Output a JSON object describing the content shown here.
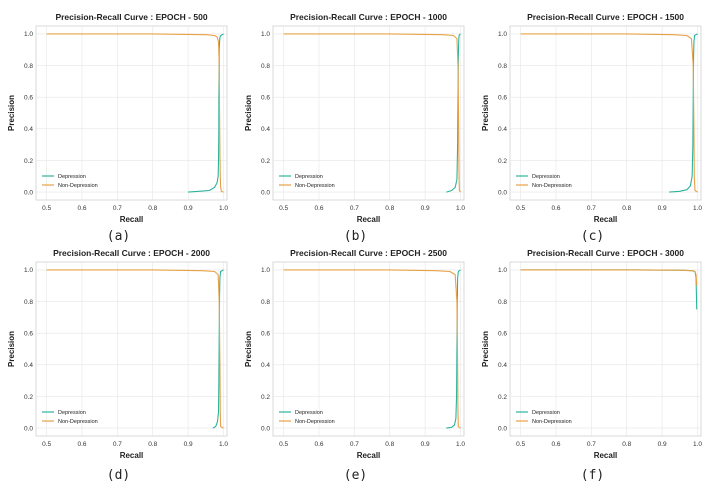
{
  "chart_data": [
    {
      "panel": "(a)",
      "type": "line",
      "title": "Precision-Recall Curve : EPOCH - 500",
      "xlabel": "Recall",
      "ylabel": "Precision",
      "xlim": [
        0.47,
        1.01
      ],
      "ylim": [
        -0.05,
        1.05
      ],
      "xticks": [
        "0.5",
        "0.6",
        "0.7",
        "0.8",
        "0.9",
        "1.0"
      ],
      "yticks": [
        "0.0",
        "0.2",
        "0.4",
        "0.6",
        "0.8",
        "1.0"
      ],
      "grid": true,
      "legend_position": "lower-left",
      "series": [
        {
          "name": "Depression",
          "color": "#2bb39b",
          "x": [
            0.9,
            0.93,
            0.96,
            0.975,
            0.982,
            0.985,
            0.986,
            0.987,
            0.987,
            0.988,
            0.988,
            0.989,
            0.99,
            0.993,
            1.0
          ],
          "y": [
            0.0,
            0.005,
            0.01,
            0.03,
            0.06,
            0.1,
            0.2,
            0.4,
            0.6,
            0.8,
            0.9,
            0.95,
            0.98,
            0.99,
            1.0
          ]
        },
        {
          "name": "Non-Depression",
          "color": "#e8a045",
          "x": [
            0.5,
            0.8,
            0.95,
            0.975,
            0.982,
            0.986,
            0.988,
            0.989,
            0.99,
            0.991,
            0.992,
            0.994,
            1.0
          ],
          "y": [
            1.0,
            1.0,
            0.995,
            0.99,
            0.98,
            0.95,
            0.8,
            0.5,
            0.25,
            0.1,
            0.03,
            0.005,
            0.0
          ]
        }
      ]
    },
    {
      "panel": "(b)",
      "type": "line",
      "title": "Precision-Recall Curve : EPOCH - 1000",
      "xlabel": "Recall",
      "ylabel": "Precision",
      "xlim": [
        0.47,
        1.01
      ],
      "ylim": [
        -0.05,
        1.05
      ],
      "xticks": [
        "0.5",
        "0.6",
        "0.7",
        "0.8",
        "0.9",
        "1.0"
      ],
      "yticks": [
        "0.0",
        "0.2",
        "0.4",
        "0.6",
        "0.8",
        "1.0"
      ],
      "grid": true,
      "legend_position": "lower-left",
      "series": [
        {
          "name": "Depression",
          "color": "#2bb39b",
          "x": [
            0.96,
            0.975,
            0.985,
            0.99,
            0.992,
            0.993,
            0.994,
            0.995,
            0.996,
            1.0
          ],
          "y": [
            0.0,
            0.01,
            0.03,
            0.08,
            0.3,
            0.6,
            0.85,
            0.95,
            0.99,
            1.0
          ]
        },
        {
          "name": "Non-Depression",
          "color": "#e8a045",
          "x": [
            0.5,
            0.8,
            0.95,
            0.98,
            0.99,
            0.993,
            0.995,
            0.996,
            0.997,
            1.0
          ],
          "y": [
            1.0,
            1.0,
            0.995,
            0.99,
            0.97,
            0.8,
            0.4,
            0.1,
            0.01,
            0.0
          ]
        }
      ]
    },
    {
      "panel": "(c)",
      "type": "line",
      "title": "Precision-Recall Curve : EPOCH - 1500",
      "xlabel": "Recall",
      "ylabel": "Precision",
      "xlim": [
        0.47,
        1.01
      ],
      "ylim": [
        -0.05,
        1.05
      ],
      "xticks": [
        "0.5",
        "0.6",
        "0.7",
        "0.8",
        "0.9",
        "1.0"
      ],
      "yticks": [
        "0.0",
        "0.2",
        "0.4",
        "0.6",
        "0.8",
        "1.0"
      ],
      "grid": true,
      "legend_position": "lower-left",
      "series": [
        {
          "name": "Depression",
          "color": "#2bb39b",
          "x": [
            0.92,
            0.95,
            0.97,
            0.98,
            0.985,
            0.987,
            0.988,
            0.989,
            0.99,
            0.992,
            1.0
          ],
          "y": [
            0.0,
            0.005,
            0.015,
            0.04,
            0.1,
            0.3,
            0.6,
            0.85,
            0.95,
            0.99,
            1.0
          ]
        },
        {
          "name": "Non-Depression",
          "color": "#e8a045",
          "x": [
            0.5,
            0.8,
            0.93,
            0.97,
            0.983,
            0.988,
            0.99,
            0.991,
            0.993,
            1.0
          ],
          "y": [
            1.0,
            1.0,
            0.995,
            0.99,
            0.97,
            0.8,
            0.4,
            0.1,
            0.01,
            0.0
          ]
        }
      ]
    },
    {
      "panel": "(d)",
      "type": "line",
      "title": "Precision-Recall Curve : EPOCH - 2000",
      "xlabel": "Recall",
      "ylabel": "Precision",
      "xlim": [
        0.47,
        1.01
      ],
      "ylim": [
        -0.05,
        1.05
      ],
      "xticks": [
        "0.5",
        "0.6",
        "0.7",
        "0.8",
        "0.9",
        "1.0"
      ],
      "yticks": [
        "0.0",
        "0.2",
        "0.4",
        "0.6",
        "0.8",
        "1.0"
      ],
      "grid": true,
      "legend_position": "lower-left",
      "series": [
        {
          "name": "Depression",
          "color": "#2bb39b",
          "x": [
            0.97,
            0.978,
            0.983,
            0.986,
            0.987,
            0.988,
            0.989,
            0.99,
            0.992,
            1.0
          ],
          "y": [
            0.0,
            0.01,
            0.04,
            0.1,
            0.3,
            0.6,
            0.85,
            0.95,
            0.99,
            1.0
          ]
        },
        {
          "name": "Non-Depression",
          "color": "#e8a045",
          "x": [
            0.5,
            0.8,
            0.94,
            0.975,
            0.985,
            0.988,
            0.99,
            0.991,
            0.992,
            1.0
          ],
          "y": [
            1.0,
            1.0,
            0.995,
            0.99,
            0.97,
            0.8,
            0.4,
            0.1,
            0.01,
            0.0
          ]
        }
      ]
    },
    {
      "panel": "(e)",
      "type": "line",
      "title": "Precision-Recall Curve : EPOCH - 2500",
      "xlabel": "Recall",
      "ylabel": "Precision",
      "xlim": [
        0.47,
        1.01
      ],
      "ylim": [
        -0.05,
        1.05
      ],
      "xticks": [
        "0.5",
        "0.6",
        "0.7",
        "0.8",
        "0.9",
        "1.0"
      ],
      "yticks": [
        "0.0",
        "0.2",
        "0.4",
        "0.6",
        "0.8",
        "1.0"
      ],
      "grid": true,
      "legend_position": "lower-left",
      "series": [
        {
          "name": "Depression",
          "color": "#2bb39b",
          "x": [
            0.96,
            0.975,
            0.983,
            0.987,
            0.989,
            0.99,
            0.991,
            0.992,
            0.994,
            1.0
          ],
          "y": [
            0.0,
            0.005,
            0.02,
            0.06,
            0.2,
            0.5,
            0.8,
            0.95,
            0.99,
            1.0
          ]
        },
        {
          "name": "Non-Depression",
          "color": "#e8a045",
          "x": [
            0.5,
            0.8,
            0.93,
            0.97,
            0.985,
            0.99,
            0.992,
            0.993,
            0.994,
            1.0
          ],
          "y": [
            1.0,
            1.0,
            0.995,
            0.99,
            0.97,
            0.8,
            0.4,
            0.1,
            0.01,
            0.0
          ]
        }
      ]
    },
    {
      "panel": "(f)",
      "type": "line",
      "title": "Precision-Recall Curve : EPOCH - 3000",
      "xlabel": "Recall",
      "ylabel": "Precision",
      "xlim": [
        0.47,
        1.01
      ],
      "ylim": [
        -0.05,
        1.05
      ],
      "xticks": [
        "0.5",
        "0.6",
        "0.7",
        "0.8",
        "0.9",
        "1.0"
      ],
      "yticks": [
        "0.0",
        "0.2",
        "0.4",
        "0.6",
        "0.8",
        "1.0"
      ],
      "grid": true,
      "legend_position": "lower-left",
      "series": [
        {
          "name": "Depression",
          "color": "#2bb39b",
          "x": [
            0.5,
            0.8,
            0.95,
            0.985,
            0.993,
            0.996,
            0.997,
            0.998
          ],
          "y": [
            1.0,
            1.0,
            0.998,
            0.995,
            0.99,
            0.95,
            0.85,
            0.75
          ]
        },
        {
          "name": "Non-Depression",
          "color": "#e8a045",
          "x": [
            0.5,
            0.8,
            0.95,
            0.985,
            0.993,
            0.996,
            0.998
          ],
          "y": [
            1.0,
            1.0,
            0.998,
            0.995,
            0.99,
            0.97,
            0.9
          ]
        }
      ]
    }
  ]
}
